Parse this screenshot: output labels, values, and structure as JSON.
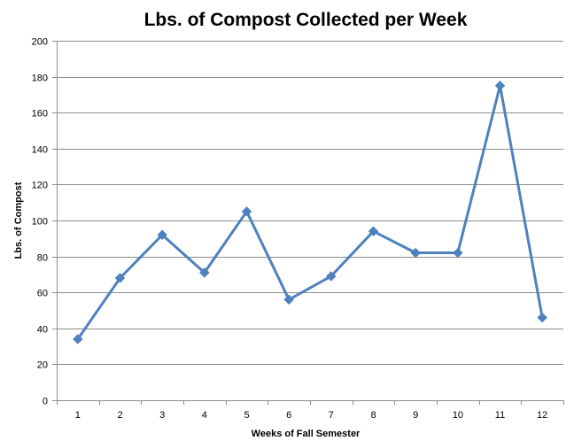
{
  "chart_data": {
    "type": "line",
    "title": "Lbs. of Compost Collected per Week",
    "xlabel": "Weeks of Fall Semester",
    "ylabel": "Lbs. of Compost",
    "categories": [
      "1",
      "2",
      "3",
      "4",
      "5",
      "6",
      "7",
      "8",
      "9",
      "10",
      "11",
      "12"
    ],
    "series": [
      {
        "values": [
          34,
          68,
          92,
          71,
          105,
          56,
          69,
          94,
          82,
          82,
          175,
          46
        ]
      }
    ],
    "ylim": [
      0,
      200
    ],
    "yticks": [
      "0",
      "20",
      "40",
      "60",
      "80",
      "100",
      "120",
      "140",
      "160",
      "180",
      "200"
    ],
    "grid": true,
    "legend": "none",
    "colors": {
      "line": "#4f81bd",
      "grid": "#8c8c8c",
      "axis": "#8c8c8c"
    },
    "marker": "diamond"
  }
}
